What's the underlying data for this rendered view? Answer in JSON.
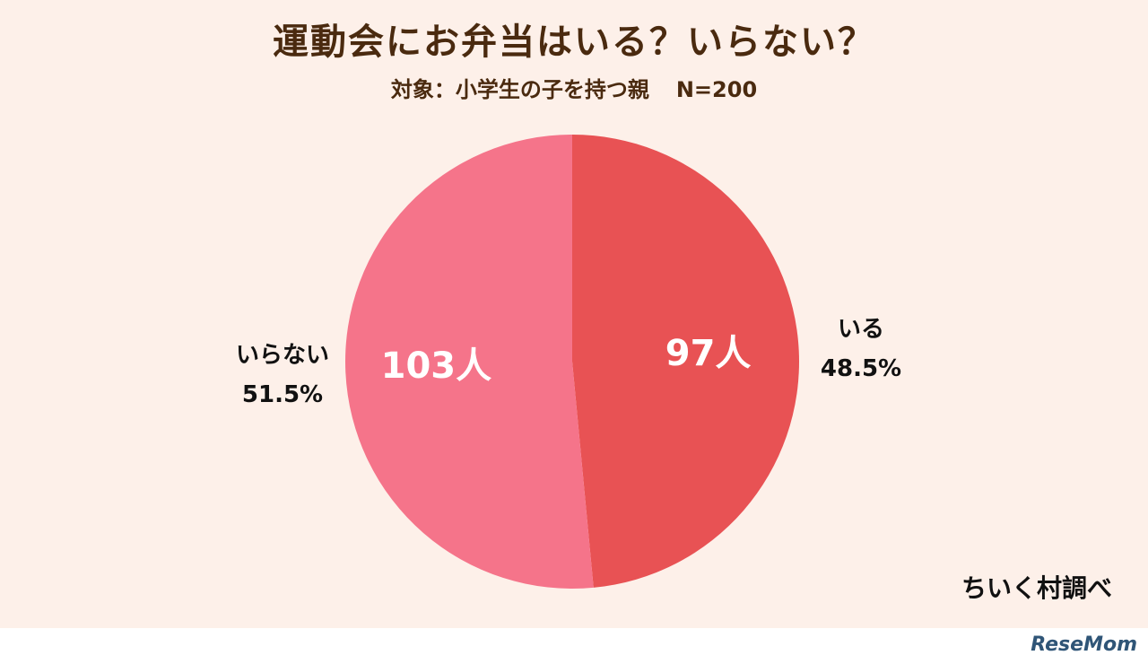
{
  "title": "運動会にお弁当はいる？いらない？",
  "subtitle": {
    "target": "対象：小学生の子を持つ親",
    "n": "N=200"
  },
  "chart_data": {
    "type": "pie",
    "title": "運動会にお弁当はいる？いらない？",
    "subtitle": "対象：小学生の子を持つ親　N=200",
    "total": 200,
    "start_angle_deg": 0,
    "direction": "clockwise",
    "slices": [
      {
        "label": "いる",
        "count": 97,
        "count_label": "97人",
        "percent": 48.5,
        "percent_label": "48.5%",
        "color": "#e85254"
      },
      {
        "label": "いらない",
        "count": 103,
        "count_label": "103人",
        "percent": 51.5,
        "percent_label": "51.5%",
        "color": "#f5748a"
      }
    ]
  },
  "source": "ちいく村調べ",
  "watermark": "ReseMom"
}
